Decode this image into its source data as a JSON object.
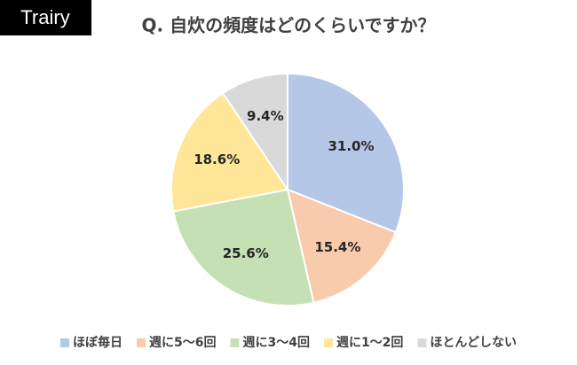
{
  "brand": "Trairy",
  "chart_data": {
    "type": "pie",
    "title": "Q. 自炊の頻度はどのくらいですか？",
    "categories": [
      "ほぼ毎日",
      "週に5～6回",
      "週に3～4回",
      "週に1～2回",
      "ほとんどしない"
    ],
    "values": [
      31.0,
      15.4,
      25.6,
      18.6,
      9.4
    ],
    "value_labels": [
      "31.0%",
      "15.4%",
      "25.6%",
      "18.6%",
      "9.4%"
    ],
    "colors": [
      "#b4c7e7",
      "#f8cbad",
      "#c5e0b4",
      "#ffe699",
      "#d9d9d9"
    ],
    "legend": "bottom"
  }
}
